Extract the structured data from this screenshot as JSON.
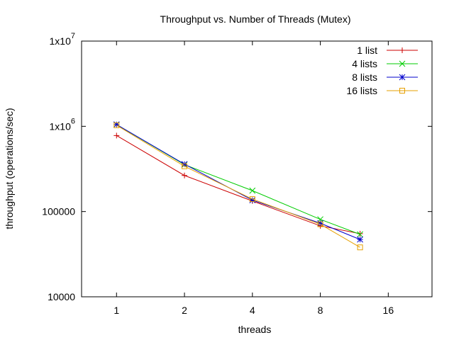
{
  "chart_data": {
    "type": "line",
    "title": "Throughput vs. Number of Threads (Mutex)",
    "xlabel": "threads",
    "ylabel": "throughput (operations/sec)",
    "x_scale": "log2",
    "y_scale": "log10",
    "xlim": [
      0.7,
      25
    ],
    "ylim": [
      10000,
      10000000
    ],
    "x_ticks": [
      1,
      2,
      4,
      8,
      16
    ],
    "x_tick_labels": [
      "1",
      "2",
      "4",
      "8",
      "16"
    ],
    "y_ticks": [
      10000,
      100000,
      1000000,
      10000000
    ],
    "y_tick_labels": [
      {
        "base": "10000",
        "exp": ""
      },
      {
        "base": "100000",
        "exp": ""
      },
      {
        "base": "1x10",
        "exp": "6"
      },
      {
        "base": "1x10",
        "exp": "7"
      }
    ],
    "grid": false,
    "legend_position": "top-right",
    "x": [
      1,
      2,
      4,
      8,
      12
    ],
    "series": [
      {
        "name": "1 list",
        "color": "#cc0000",
        "marker": "plus",
        "values": [
          780000,
          265000,
          133000,
          68000,
          55000
        ]
      },
      {
        "name": "4 lists",
        "color": "#00cc00",
        "marker": "cross",
        "values": [
          1050000,
          355000,
          176000,
          81000,
          54000
        ]
      },
      {
        "name": "8 lists",
        "color": "#0000cc",
        "marker": "star",
        "values": [
          1050000,
          360000,
          136000,
          73000,
          47000
        ]
      },
      {
        "name": "16 lists",
        "color": "#e6a000",
        "marker": "square",
        "values": [
          1030000,
          340000,
          140000,
          71000,
          38000
        ]
      }
    ]
  }
}
